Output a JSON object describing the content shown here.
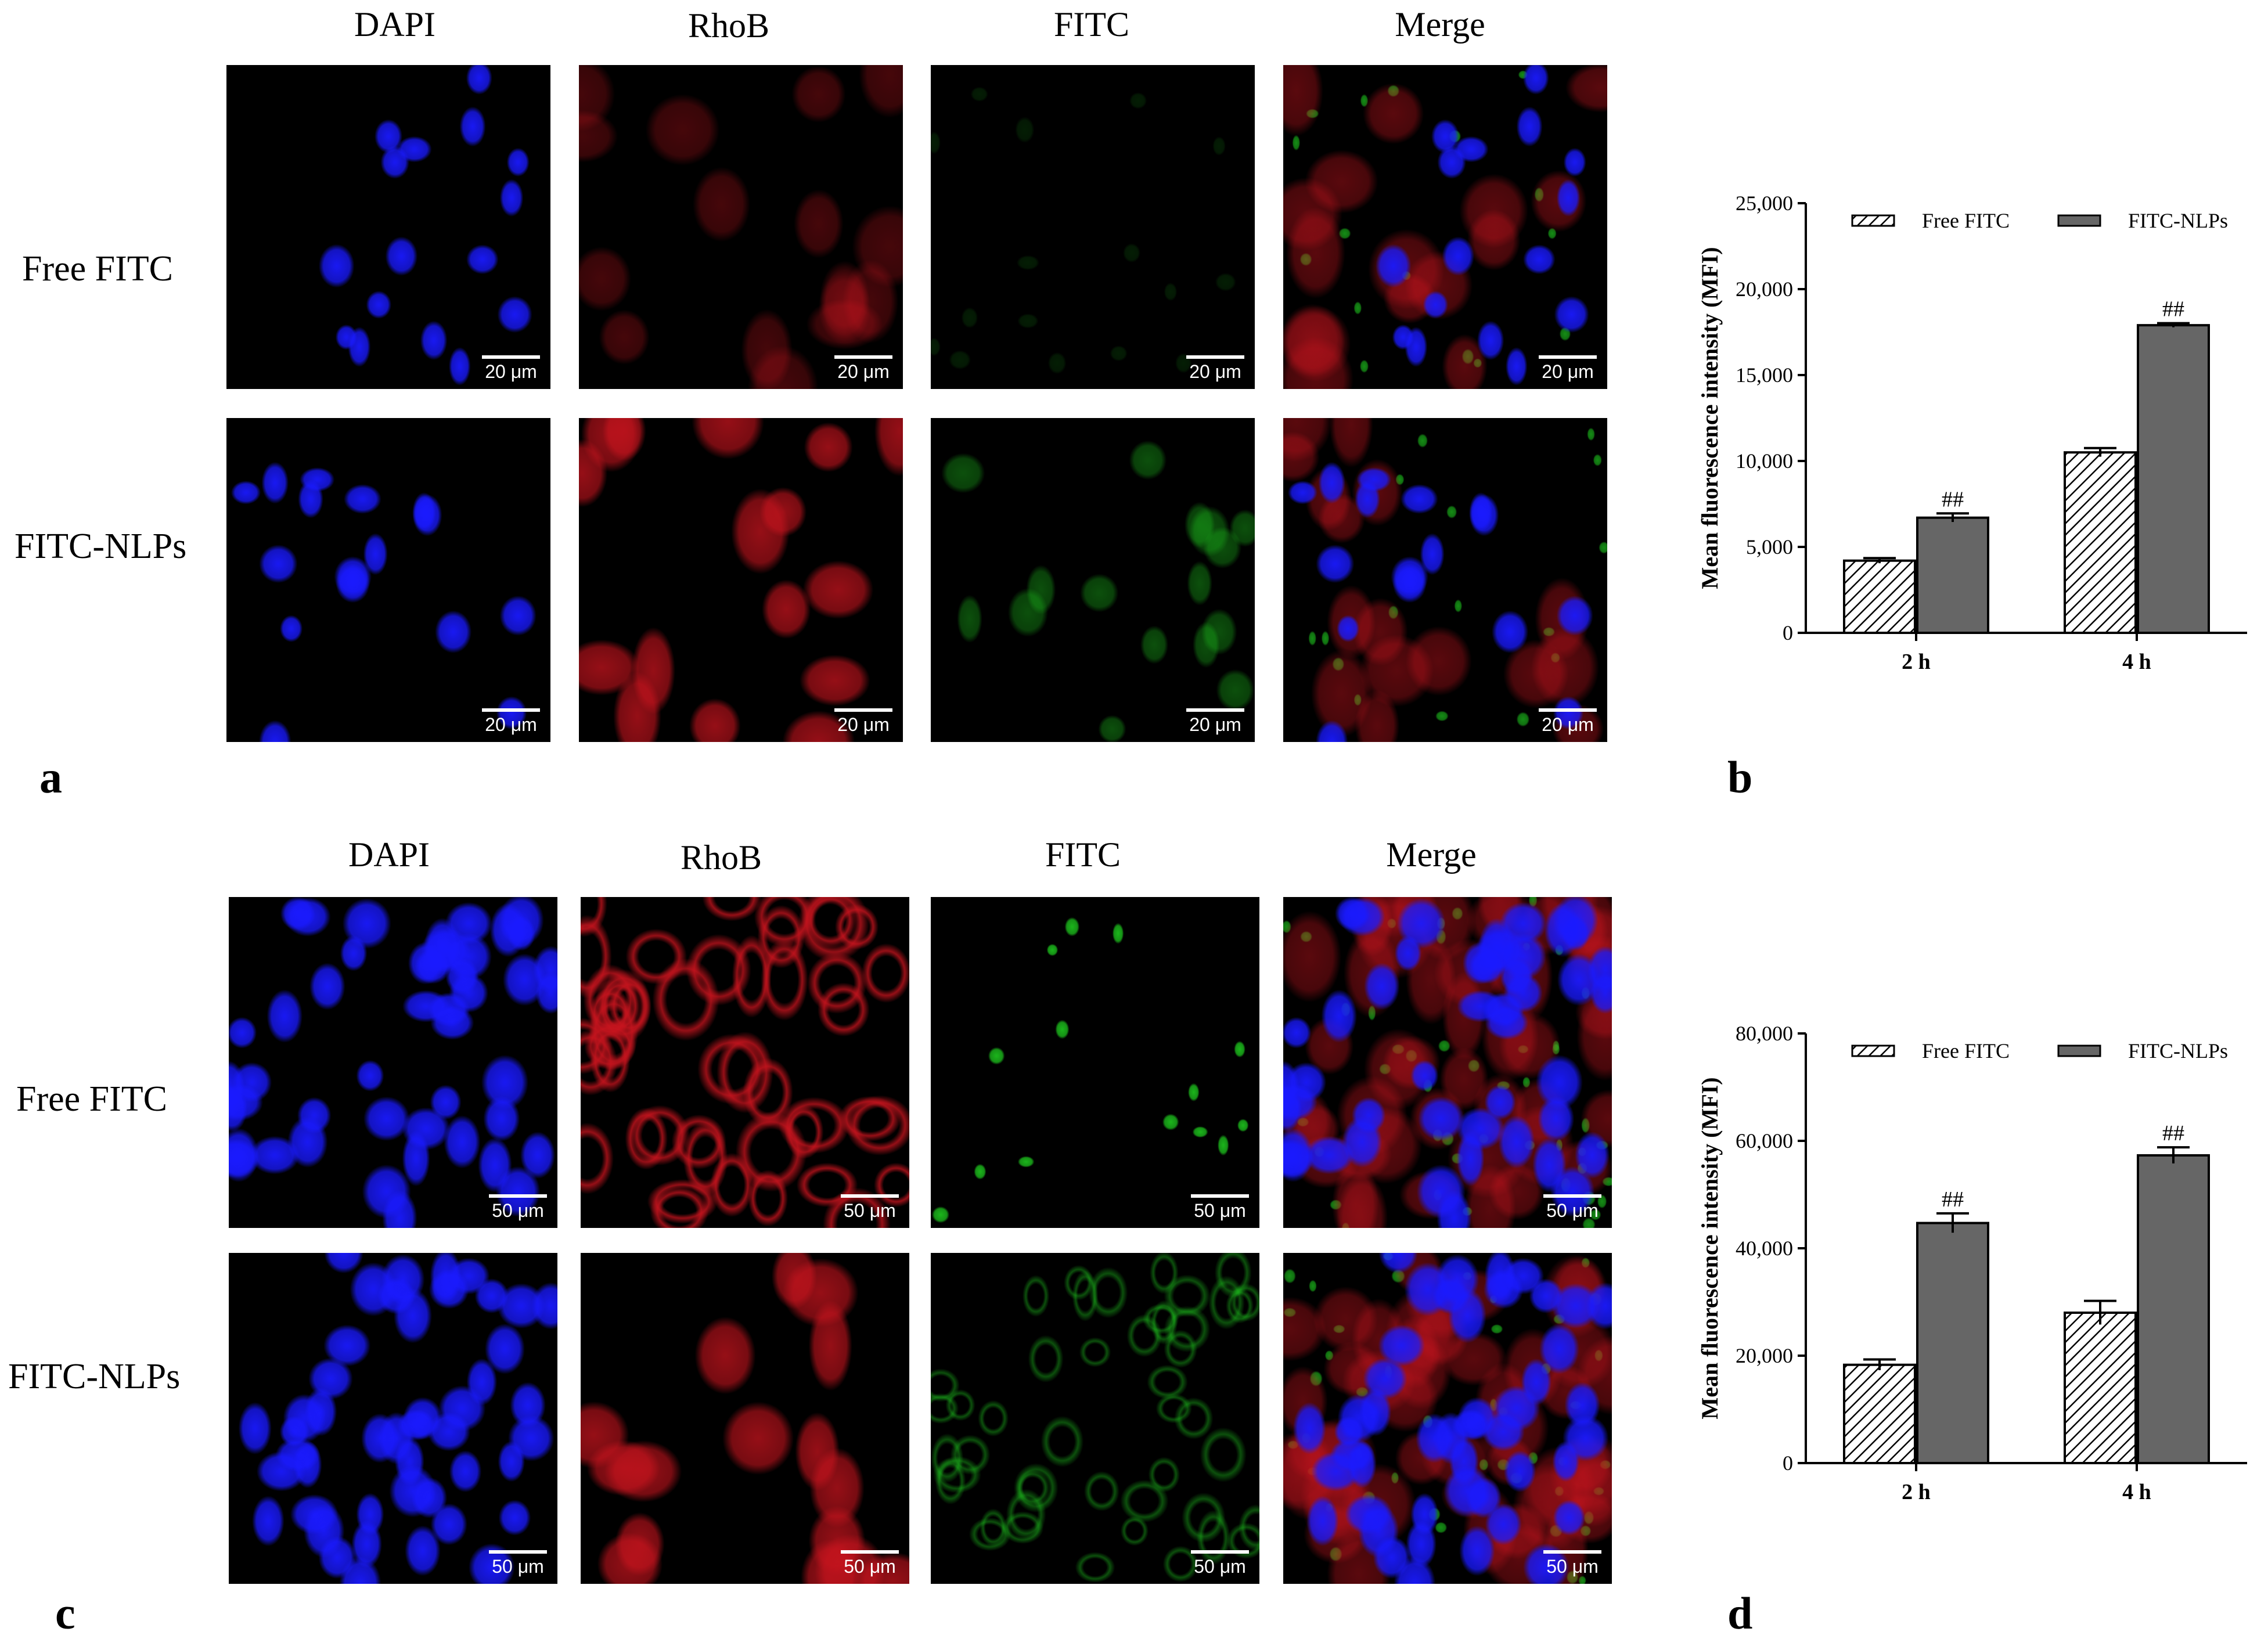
{
  "panel_a": {
    "letter": "a",
    "columns": [
      "DAPI",
      "RhoB",
      "FITC",
      "Merge"
    ],
    "rows": [
      "Free FITC",
      "FITC-NLPs"
    ],
    "scale_label": "20 μm"
  },
  "panel_c": {
    "letter": "c",
    "columns": [
      "DAPI",
      "RhoB",
      "FITC",
      "Merge"
    ],
    "rows": [
      "Free FITC",
      "FITC-NLPs"
    ],
    "scale_label": "50 μm"
  },
  "colors": {
    "dapi": "#1a1aff",
    "rhob": "#c8141e",
    "fitc": "#1ec81e",
    "bar_dark": "#666666"
  },
  "chart_data": [
    {
      "letter": "b",
      "type": "bar",
      "categories": [
        "2 h",
        "4 h"
      ],
      "ylabel": "Mean fluorescence intensity (MFI)",
      "ylim": [
        0,
        25000
      ],
      "yticks": [
        "0",
        "5,000",
        "10,000",
        "15,000",
        "20,000",
        "25,000"
      ],
      "legend_position": "top",
      "series": [
        {
          "name": "Free FITC",
          "values": [
            4200,
            10500
          ],
          "errors": [
            150,
            250
          ],
          "fill": "hatched"
        },
        {
          "name": "FITC-NLPs",
          "values": [
            6700,
            17900
          ],
          "errors": [
            250,
            120
          ],
          "fill": "#666666"
        }
      ],
      "annotations": [
        "##",
        "##"
      ]
    },
    {
      "letter": "d",
      "type": "bar",
      "categories": [
        "2 h",
        "4 h"
      ],
      "ylabel": "Mean fluorescence intensity (MFI)",
      "ylim": [
        0,
        80000
      ],
      "yticks": [
        "0",
        "20,000",
        "40,000",
        "60,000",
        "80,000"
      ],
      "legend_position": "top",
      "series": [
        {
          "name": "Free FITC",
          "values": [
            18300,
            28000
          ],
          "errors": [
            1000,
            2200
          ],
          "fill": "hatched"
        },
        {
          "name": "FITC-NLPs",
          "values": [
            44700,
            57300
          ],
          "errors": [
            1800,
            1500
          ],
          "fill": "#666666"
        }
      ],
      "annotations": [
        "##",
        "##"
      ]
    }
  ]
}
